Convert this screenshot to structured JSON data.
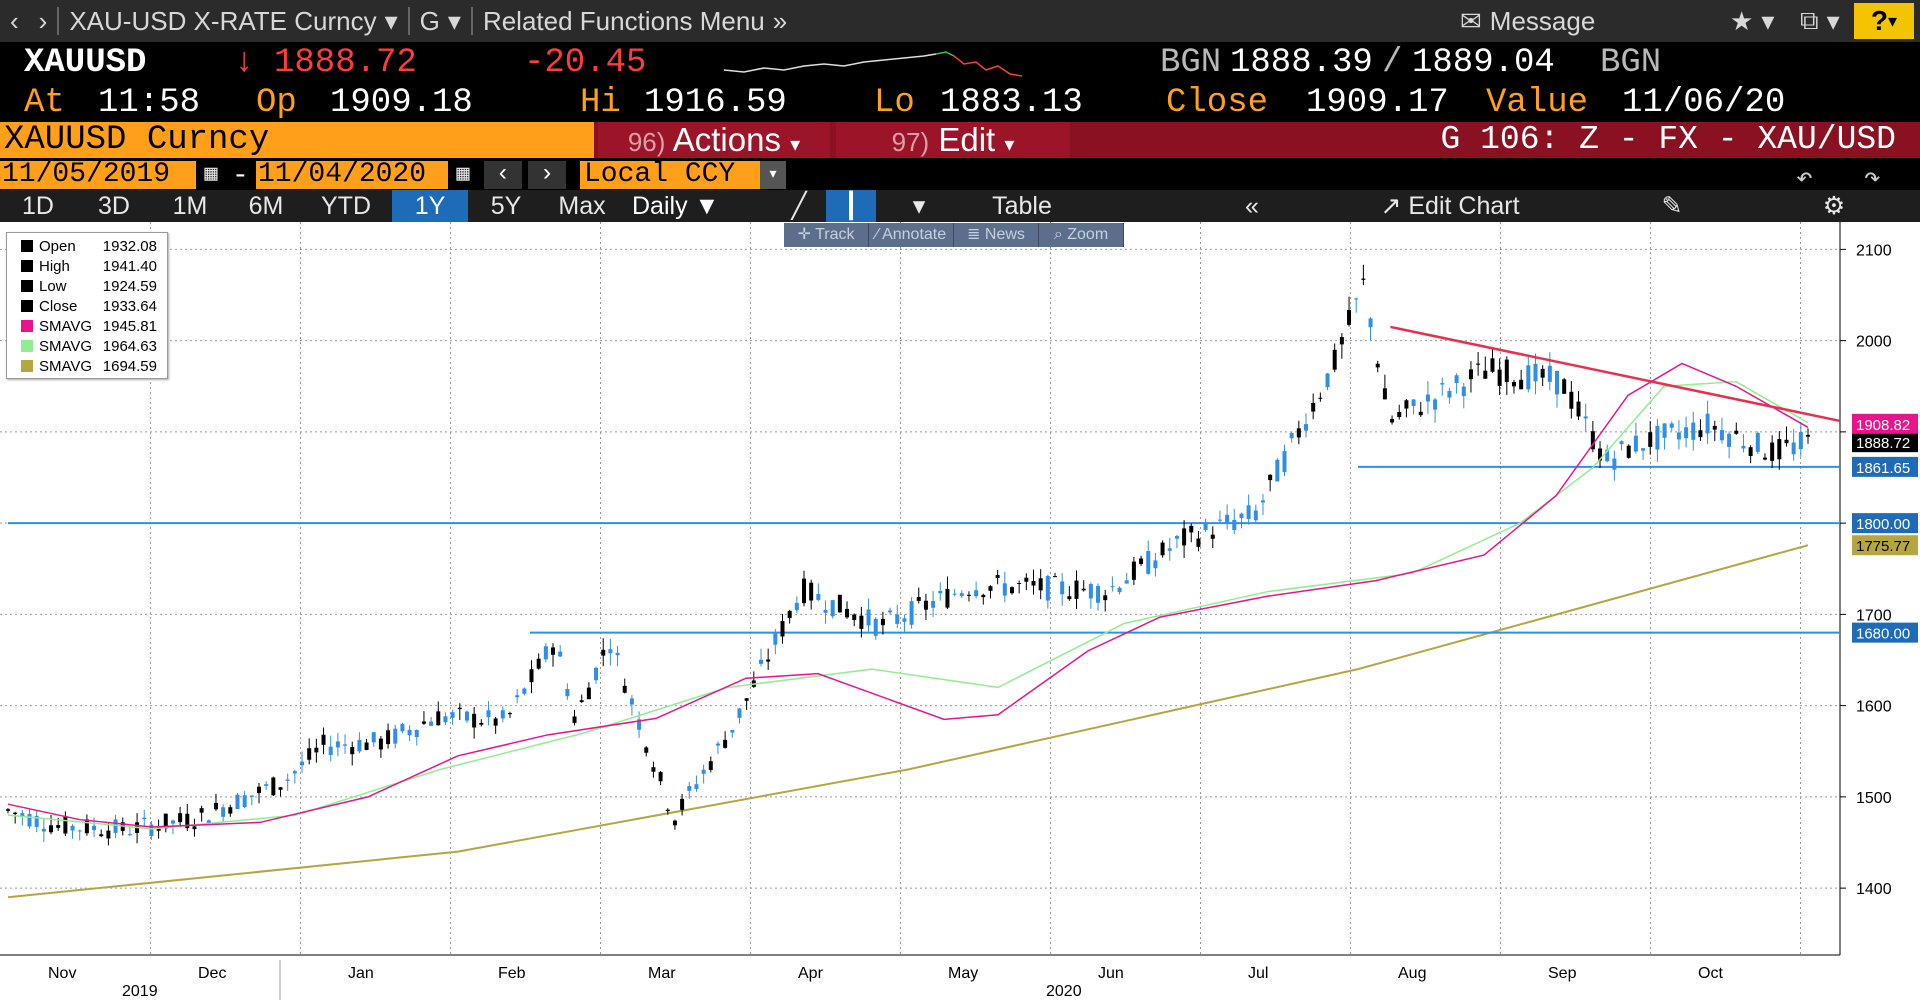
{
  "topbar": {
    "title": "XAU-USD X-RATE Curncy",
    "code": "G",
    "related": "Related Functions Menu",
    "message": "Message",
    "help": "?"
  },
  "quote": {
    "ticker": "XAUUSD",
    "arrow": "↓",
    "last": "1888.72",
    "change": "-20.45",
    "src1": "BGN",
    "bid": "1888.39",
    "slash": "/",
    "ask": "1889.04",
    "src2": "BGN",
    "at_label": "At",
    "at": "11:58",
    "op_label": "Op",
    "op": "1909.18",
    "hi_label": "Hi",
    "hi": "1916.59",
    "lo_label": "Lo",
    "lo": "1883.13",
    "close_label": "Close",
    "close": "1909.17",
    "value_label": "Value",
    "value": "11/06/20"
  },
  "security": {
    "name": "XAUUSD Curncy",
    "actions_num": "96)",
    "actions": "Actions",
    "edit_num": "97)",
    "edit": "Edit",
    "chart_code": "G 106: Z - FX - XAU/USD"
  },
  "dates": {
    "start": "11/05/2019",
    "dash": "-",
    "end": "11/04/2020",
    "currency": "Local CCY"
  },
  "ranges": [
    "1D",
    "3D",
    "1M",
    "6M",
    "YTD",
    "1Y",
    "5Y",
    "Max"
  ],
  "active_range": "1Y",
  "controls": {
    "period": "Daily",
    "table": "Table",
    "edit_chart": "Edit Chart"
  },
  "tools": [
    "Track",
    "Annotate",
    "News",
    "Zoom"
  ],
  "legend": [
    {
      "name": "Open",
      "value": "1932.08",
      "color": "#000000"
    },
    {
      "name": "High",
      "value": "1941.40",
      "color": "#000000"
    },
    {
      "name": "Low",
      "value": "1924.59",
      "color": "#000000"
    },
    {
      "name": "Close",
      "value": "1933.64",
      "color": "#000000"
    },
    {
      "name": "SMAVG",
      "value": "1945.81",
      "color": "#e8148c"
    },
    {
      "name": "SMAVG",
      "value": "1964.63",
      "color": "#90ee90"
    },
    {
      "name": "SMAVG",
      "value": "1694.59",
      "color": "#b5a642"
    }
  ],
  "chart_data": {
    "type": "candlestick",
    "ylim": [
      1330,
      2130
    ],
    "yticks": [
      1400,
      1500,
      1600,
      1700,
      1800,
      1900,
      2000,
      2100
    ],
    "months": [
      "Nov",
      "Dec",
      "Jan",
      "Feb",
      "Mar",
      "Apr",
      "May",
      "Jun",
      "Jul",
      "Aug",
      "Sep",
      "Oct"
    ],
    "years": [
      "2019",
      "2020"
    ],
    "up_color": "#000000",
    "down_color": "#2f8fe6",
    "price_series": {
      "points_month_close": [
        [
          "2019-11-05",
          1485
        ],
        [
          "2019-11-15",
          1468
        ],
        [
          "2019-11-29",
          1464
        ],
        [
          "2019-12-13",
          1476
        ],
        [
          "2019-12-31",
          1517
        ],
        [
          "2020-01-08",
          1556
        ],
        [
          "2020-01-20",
          1560
        ],
        [
          "2020-01-31",
          1588
        ],
        [
          "2020-02-14",
          1583
        ],
        [
          "2020-02-24",
          1672
        ],
        [
          "2020-02-28",
          1585
        ],
        [
          "2020-03-06",
          1673
        ],
        [
          "2020-03-19",
          1476
        ],
        [
          "2020-03-31",
          1577
        ],
        [
          "2020-04-14",
          1727
        ],
        [
          "2020-04-30",
          1687
        ],
        [
          "2020-05-18",
          1731
        ],
        [
          "2020-05-29",
          1730
        ],
        [
          "2020-06-15",
          1726
        ],
        [
          "2020-06-30",
          1781
        ],
        [
          "2020-07-15",
          1810
        ],
        [
          "2020-07-31",
          1975
        ],
        [
          "2020-08-06",
          2063
        ],
        [
          "2020-08-11",
          1911
        ],
        [
          "2020-08-31",
          1968
        ],
        [
          "2020-09-15",
          1955
        ],
        [
          "2020-09-24",
          1868
        ],
        [
          "2020-09-30",
          1886
        ],
        [
          "2020-10-15",
          1908
        ],
        [
          "2020-10-28",
          1877
        ],
        [
          "2020-11-04",
          1888.72
        ]
      ]
    },
    "sma_fast": [
      [
        0,
        1492
      ],
      [
        0.04,
        1475
      ],
      [
        0.08,
        1467
      ],
      [
        0.14,
        1472
      ],
      [
        0.2,
        1500
      ],
      [
        0.25,
        1545
      ],
      [
        0.3,
        1568
      ],
      [
        0.36,
        1586
      ],
      [
        0.41,
        1630
      ],
      [
        0.45,
        1635
      ],
      [
        0.52,
        1585
      ],
      [
        0.55,
        1590
      ],
      [
        0.6,
        1660
      ],
      [
        0.64,
        1697
      ],
      [
        0.7,
        1720
      ],
      [
        0.76,
        1737
      ],
      [
        0.82,
        1765
      ],
      [
        0.86,
        1830
      ],
      [
        0.9,
        1940
      ],
      [
        0.93,
        1975
      ],
      [
        0.96,
        1950
      ],
      [
        1.0,
        1905
      ]
    ],
    "sma_mid": [
      [
        0,
        1480
      ],
      [
        0.08,
        1465
      ],
      [
        0.16,
        1480
      ],
      [
        0.24,
        1530
      ],
      [
        0.32,
        1570
      ],
      [
        0.4,
        1620
      ],
      [
        0.48,
        1640
      ],
      [
        0.55,
        1620
      ],
      [
        0.62,
        1690
      ],
      [
        0.7,
        1725
      ],
      [
        0.78,
        1745
      ],
      [
        0.84,
        1800
      ],
      [
        0.88,
        1860
      ],
      [
        0.92,
        1950
      ],
      [
        0.96,
        1955
      ],
      [
        1.0,
        1910
      ]
    ],
    "sma_slow": [
      [
        0,
        1390
      ],
      [
        0.25,
        1440
      ],
      [
        0.5,
        1530
      ],
      [
        0.75,
        1640
      ],
      [
        1.0,
        1775.77
      ]
    ],
    "hlines": [
      {
        "value": 1861.65,
        "label": "1861.65",
        "from": 0.75
      },
      {
        "value": 1800.0,
        "label": "1800.00",
        "from": 0
      },
      {
        "value": 1680.0,
        "label": "1680.00",
        "from": 0.29
      }
    ],
    "trendline": {
      "from": [
        0.768,
        2015
      ],
      "to": [
        1.0,
        1912
      ]
    },
    "price_labels": [
      {
        "value": 1888.72,
        "label": "1888.72",
        "style": "last"
      },
      {
        "value": 1908.82,
        "label": "1908.82",
        "style": "fast"
      },
      {
        "value": 1775.77,
        "label": "1775.77",
        "style": "slow"
      }
    ]
  }
}
